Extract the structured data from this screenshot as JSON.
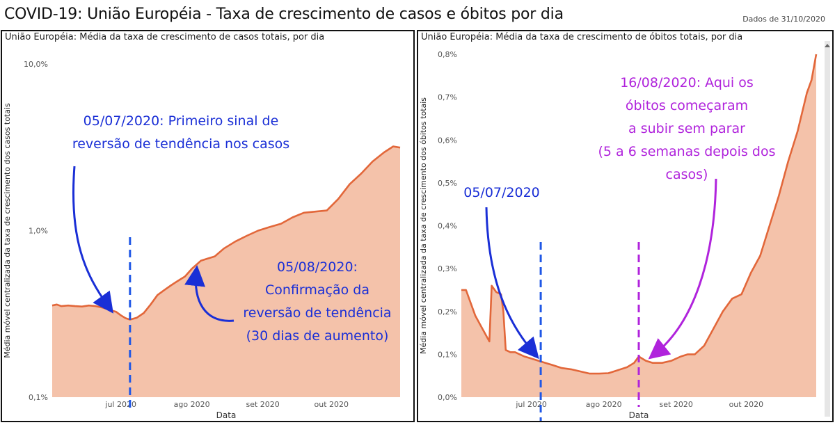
{
  "header": {
    "title": "COVID-19: União Européia - Taxa de crescimento de casos e óbitos por dia",
    "date_text": "Dados de 31/10/2020"
  },
  "colors": {
    "line": "#e2673a",
    "fill": "#f4c2aa",
    "blue": "#1a2fd6",
    "dashed_blue": "#1f57e6",
    "purple": "#b023dc"
  },
  "chart_data": [
    {
      "type": "area",
      "title": "União Européia: Média da taxa de crescimento de casos totais, por dia",
      "xlabel": "Data",
      "ylabel": "Média móvel centralizada da taxa de crescimento dos casos totais",
      "yscale": "log",
      "ylim": [
        0.1,
        10.0
      ],
      "y_ticks": [
        "0,1%",
        "1,0%",
        "10,0%"
      ],
      "x_ticks": [
        "jul 2020",
        "ago 2020",
        "set 2020",
        "out 2020"
      ],
      "xlim": [
        "2020-06-01",
        "2020-10-31"
      ],
      "series": [
        {
          "x": [
            "2020-06-01",
            "2020-06-03",
            "2020-06-05",
            "2020-06-08",
            "2020-06-11",
            "2020-06-14",
            "2020-06-17",
            "2020-06-20",
            "2020-06-23",
            "2020-06-26",
            "2020-06-29",
            "2020-07-01",
            "2020-07-03",
            "2020-07-05",
            "2020-07-08",
            "2020-07-11",
            "2020-07-14",
            "2020-07-17",
            "2020-07-20",
            "2020-07-23",
            "2020-07-26",
            "2020-07-29",
            "2020-08-01",
            "2020-08-05",
            "2020-08-08",
            "2020-08-11",
            "2020-08-15",
            "2020-08-20",
            "2020-08-25",
            "2020-08-30",
            "2020-09-04",
            "2020-09-09",
            "2020-09-14",
            "2020-09-19",
            "2020-09-24",
            "2020-09-29",
            "2020-10-04",
            "2020-10-09",
            "2020-10-14",
            "2020-10-19",
            "2020-10-24",
            "2020-10-28",
            "2020-10-31"
          ],
          "values": [
            0.355,
            0.36,
            0.352,
            0.355,
            0.352,
            0.35,
            0.355,
            0.352,
            0.345,
            0.335,
            0.325,
            0.31,
            0.298,
            0.292,
            0.3,
            0.32,
            0.36,
            0.41,
            0.44,
            0.47,
            0.5,
            0.53,
            0.59,
            0.66,
            0.68,
            0.7,
            0.78,
            0.86,
            0.93,
            1.0,
            1.05,
            1.1,
            1.2,
            1.28,
            1.3,
            1.32,
            1.55,
            1.9,
            2.2,
            2.6,
            2.95,
            3.2,
            3.15
          ]
        }
      ],
      "annotations": [
        {
          "lines": [
            "05/07/2020: Primeiro sinal de",
            "reversão de tendência nos casos"
          ]
        },
        {
          "lines": [
            "05/08/2020:",
            "Confirmação da",
            "reversão de tendência",
            "(30 dias de aumento)"
          ]
        }
      ]
    },
    {
      "type": "area",
      "title": "União Européia: Média da taxa de crescimento de óbitos totais, por dia",
      "xlabel": "Data",
      "ylabel": "Média móvel centralizada da taxa de crescimento dos óbitos totais",
      "ylim": [
        0.0,
        0.8
      ],
      "y_ticks": [
        "0,0%",
        "0,1%",
        "0,2%",
        "0,3%",
        "0,4%",
        "0,5%",
        "0,6%",
        "0,7%",
        "0,8%"
      ],
      "x_ticks": [
        "jul 2020",
        "ago 2020",
        "set 2020",
        "out 2020"
      ],
      "xlim": [
        "2020-06-01",
        "2020-10-31"
      ],
      "series": [
        {
          "x": [
            "2020-06-01",
            "2020-06-03",
            "2020-06-05",
            "2020-06-07",
            "2020-06-09",
            "2020-06-11",
            "2020-06-13",
            "2020-06-14",
            "2020-06-16",
            "2020-06-18",
            "2020-06-19",
            "2020-06-20",
            "2020-06-22",
            "2020-06-24",
            "2020-06-26",
            "2020-06-28",
            "2020-07-01",
            "2020-07-04",
            "2020-07-07",
            "2020-07-10",
            "2020-07-14",
            "2020-07-18",
            "2020-07-22",
            "2020-07-26",
            "2020-07-30",
            "2020-08-03",
            "2020-08-07",
            "2020-08-11",
            "2020-08-14",
            "2020-08-16",
            "2020-08-19",
            "2020-08-22",
            "2020-08-26",
            "2020-08-30",
            "2020-09-03",
            "2020-09-06",
            "2020-09-09",
            "2020-09-13",
            "2020-09-17",
            "2020-09-21",
            "2020-09-25",
            "2020-09-29",
            "2020-10-03",
            "2020-10-07",
            "2020-10-11",
            "2020-10-15",
            "2020-10-19",
            "2020-10-23",
            "2020-10-27",
            "2020-10-29",
            "2020-10-31"
          ],
          "values": [
            0.25,
            0.25,
            0.22,
            0.19,
            0.17,
            0.15,
            0.13,
            0.26,
            0.245,
            0.24,
            0.2,
            0.11,
            0.105,
            0.105,
            0.1,
            0.095,
            0.09,
            0.085,
            0.08,
            0.075,
            0.068,
            0.065,
            0.06,
            0.055,
            0.055,
            0.056,
            0.063,
            0.07,
            0.08,
            0.095,
            0.085,
            0.08,
            0.08,
            0.085,
            0.095,
            0.1,
            0.1,
            0.12,
            0.16,
            0.2,
            0.23,
            0.24,
            0.29,
            0.33,
            0.4,
            0.47,
            0.55,
            0.62,
            0.71,
            0.74,
            0.8
          ]
        }
      ],
      "annotations": [
        {
          "lines": [
            "05/07/2020"
          ]
        },
        {
          "lines": [
            "16/08/2020: Aqui os",
            "óbitos começaram",
            "a subir sem parar",
            "(5 a 6 semanas depois dos",
            "casos)"
          ]
        }
      ]
    }
  ]
}
